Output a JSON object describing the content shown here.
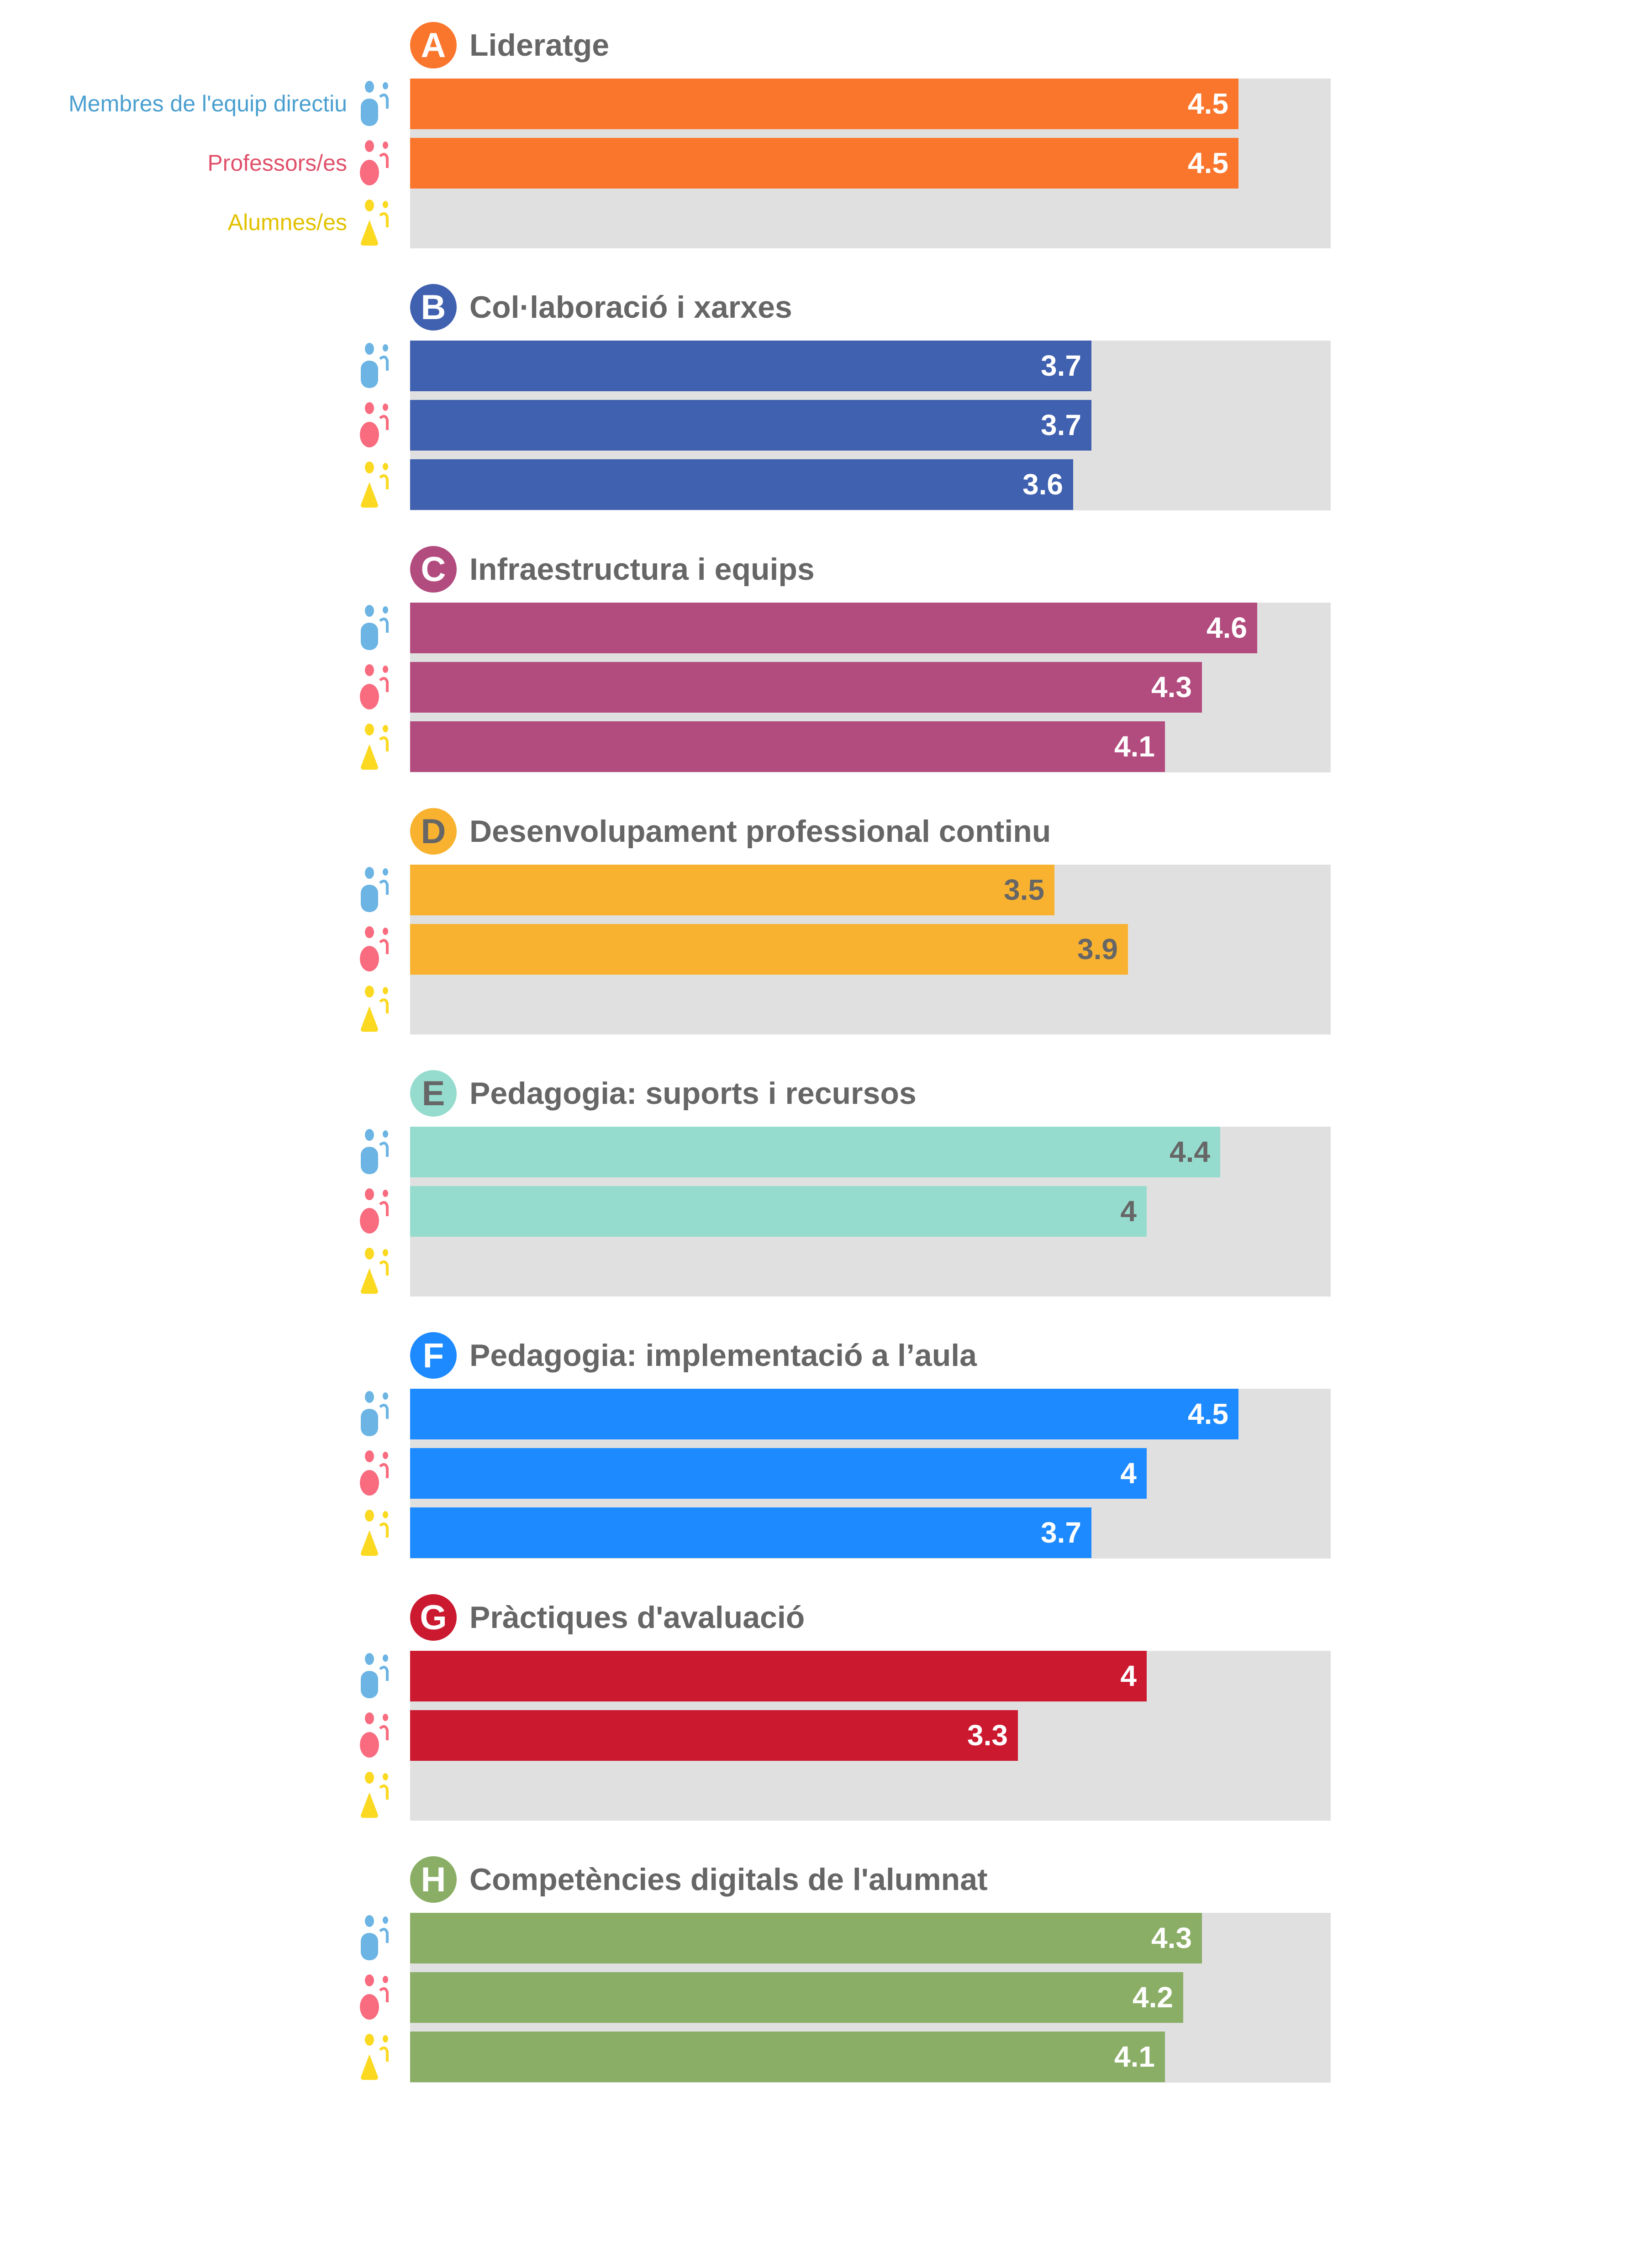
{
  "legend": [
    {
      "label": "Membres de l'equip directiu",
      "color": "#4a9fd0",
      "icon": "person-blue-icon",
      "icon_color": "#6cb4e4"
    },
    {
      "label": "Professors/es",
      "color": "#e0506a",
      "icon": "person-pink-icon",
      "icon_color": "#f96b7e"
    },
    {
      "label": "Alumnes/es",
      "color": "#e2c200",
      "icon": "person-yellow-icon",
      "icon_color": "#fbd920"
    }
  ],
  "chart_data": {
    "type": "bar",
    "orientation": "horizontal",
    "xlim": [
      0,
      5
    ],
    "series_names": [
      "Membres de l'equip directiu",
      "Professors/es",
      "Alumnes/es"
    ],
    "groups": [
      {
        "letter": "A",
        "title": "Lideratge",
        "color": "#fb762d",
        "label_color": "#ffffff",
        "values": [
          4.5,
          4.5,
          null
        ],
        "labels": [
          "4.5",
          "4.5",
          ""
        ]
      },
      {
        "letter": "B",
        "title": "Col·laboració i xarxes",
        "color": "#4060b0",
        "label_color": "#ffffff",
        "values": [
          3.7,
          3.7,
          3.6
        ],
        "labels": [
          "3.7",
          "3.7",
          "3.6"
        ]
      },
      {
        "letter": "C",
        "title": "Infraestructura i equips",
        "color": "#b24b7e",
        "label_color": "#ffffff",
        "values": [
          4.6,
          4.3,
          4.1
        ],
        "labels": [
          "4.6",
          "4.3",
          "4.1"
        ]
      },
      {
        "letter": "D",
        "title": "Desenvolupament professional continu",
        "color": "#f9b22f",
        "label_color": "#666666",
        "badge_text_color": "#666666",
        "values": [
          3.5,
          3.9,
          null
        ],
        "labels": [
          "3.5",
          "3.9",
          ""
        ]
      },
      {
        "letter": "E",
        "title": "Pedagogia: suports i recursos",
        "color": "#96dcce",
        "label_color": "#666666",
        "badge_text_color": "#666666",
        "values": [
          4.4,
          4.0,
          null
        ],
        "labels": [
          "4.4",
          "4",
          ""
        ]
      },
      {
        "letter": "F",
        "title": "Pedagogia: implementació a l’aula",
        "color": "#1e8aff",
        "label_color": "#ffffff",
        "values": [
          4.5,
          4.0,
          3.7
        ],
        "labels": [
          "4.5",
          "4",
          "3.7"
        ]
      },
      {
        "letter": "G",
        "title": "Pràctiques d'avaluació",
        "color": "#cb1930",
        "label_color": "#ffffff",
        "values": [
          4.0,
          3.3,
          null
        ],
        "labels": [
          "4",
          "3.3",
          ""
        ]
      },
      {
        "letter": "H",
        "title": "Competències digitals de l'alumnat",
        "color": "#8aae66",
        "label_color": "#ffffff",
        "values": [
          4.3,
          4.2,
          4.1
        ],
        "labels": [
          "4.3",
          "4.2",
          "4.1"
        ]
      }
    ]
  }
}
